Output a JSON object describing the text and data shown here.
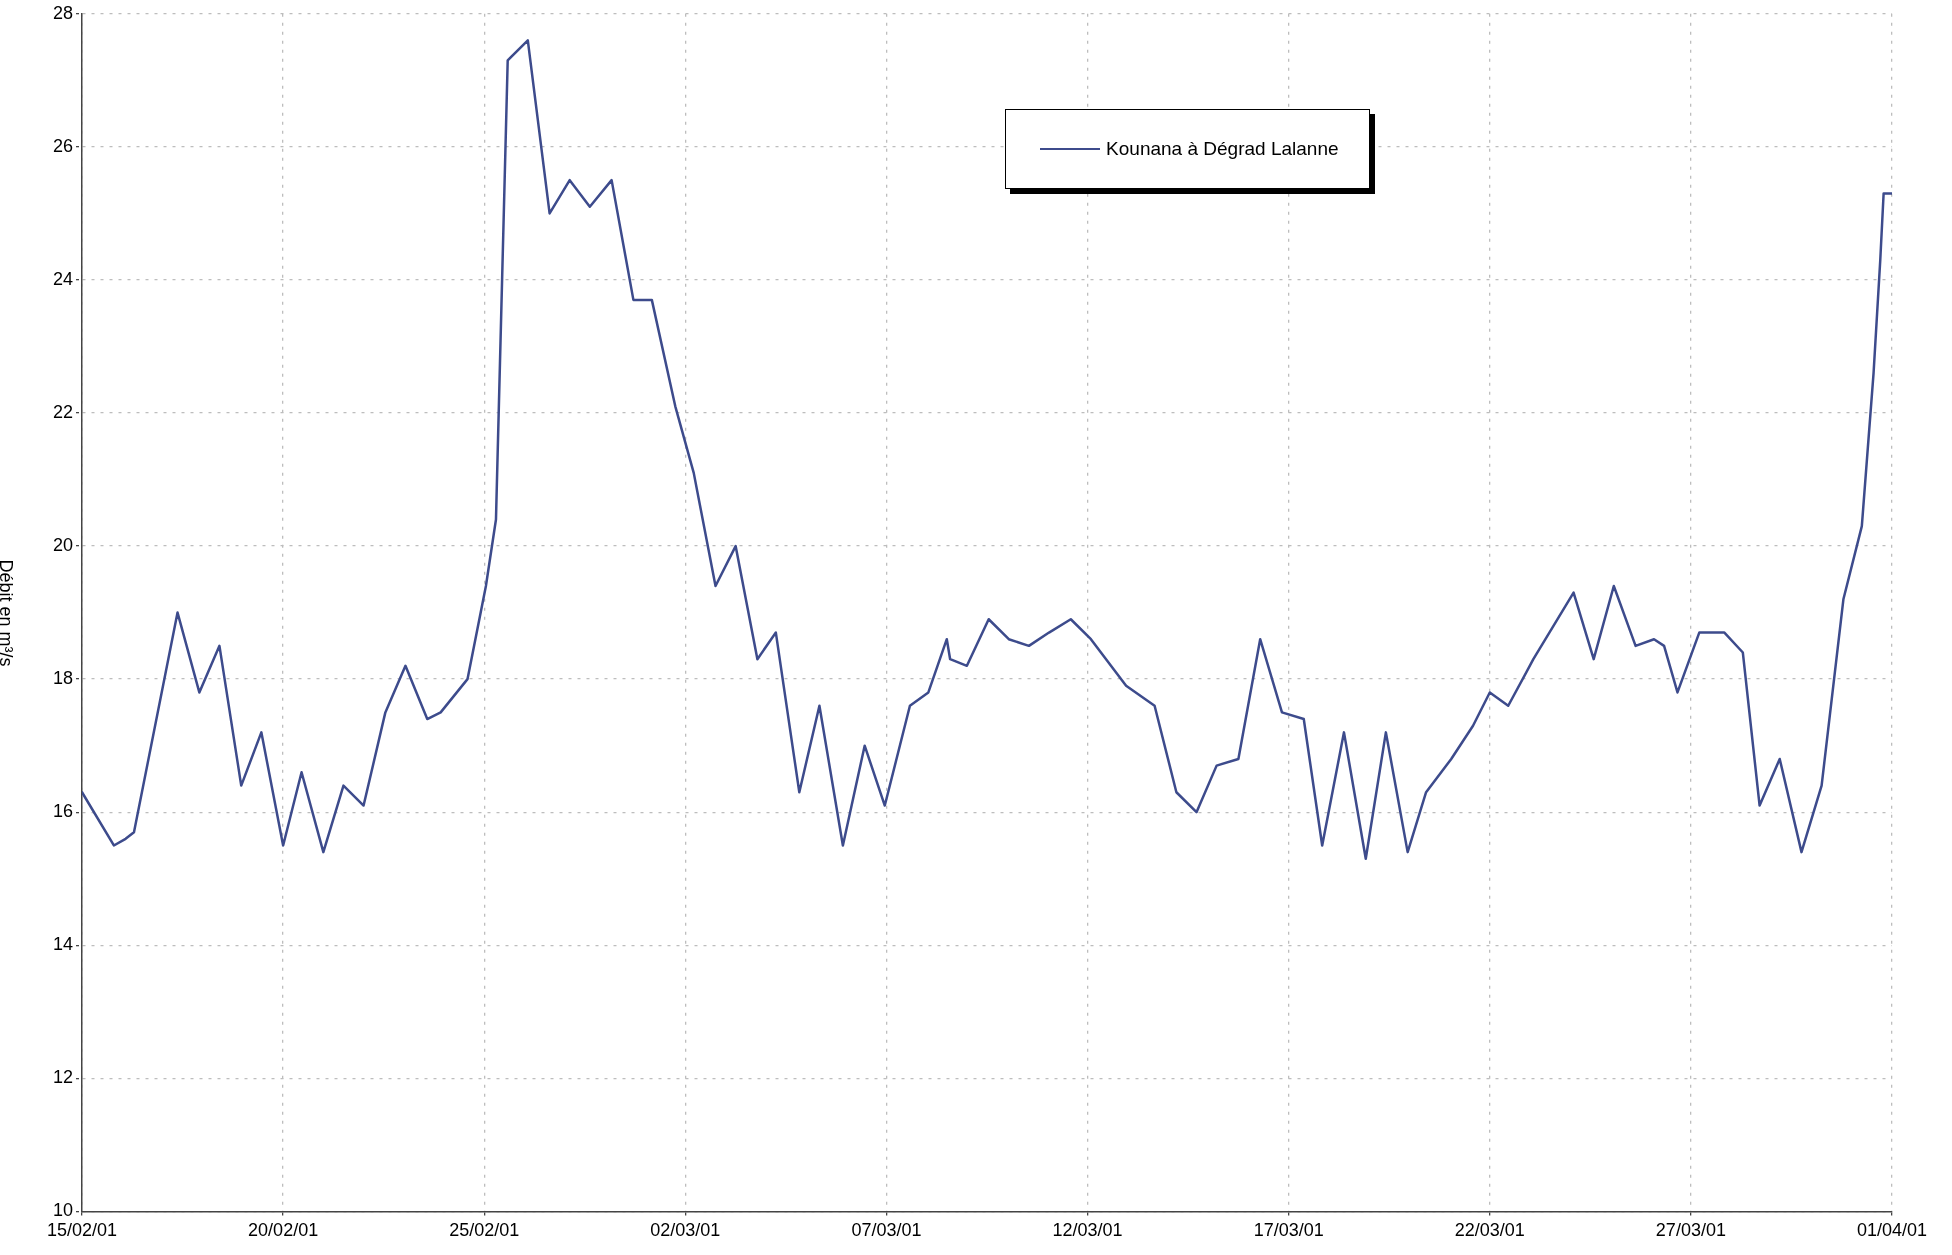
{
  "chart_data": {
    "type": "line",
    "ylabel": "Débit en m³/s",
    "xlim": [
      "--02-15",
      "--04-01"
    ],
    "xticks": [
      {
        "value": "2001-02-15",
        "label": "15/02/01"
      },
      {
        "value": "2001-02-20",
        "label": "20/02/01"
      },
      {
        "value": "2001-02-25",
        "label": "25/02/01"
      },
      {
        "value": "2001-03-02",
        "label": "02/03/01"
      },
      {
        "value": "2001-03-07",
        "label": "07/03/01"
      },
      {
        "value": "2001-03-12",
        "label": "12/03/01"
      },
      {
        "value": "2001-03-17",
        "label": "17/03/01"
      },
      {
        "value": "2001-03-22",
        "label": "22/03/01"
      },
      {
        "value": "2001-03-27",
        "label": "27/03/01"
      },
      {
        "value": "2001-04-01",
        "label": "01/04/01"
      }
    ],
    "ylim": [
      10,
      28
    ],
    "yticks": [
      10,
      12,
      14,
      16,
      18,
      20,
      22,
      24,
      26,
      28
    ],
    "grid": true,
    "legend": "top right",
    "marker": "none",
    "line_style": "solid",
    "series": [
      {
        "name": "Kounana à Dégrad Lalanne",
        "color": "#3d4b8c",
        "x": [
          "2001-02-15T00:00",
          "2001-02-15T19:00",
          "2001-02-16T02:00",
          "2001-02-16T07:00",
          "2001-02-17T09:00",
          "2001-02-17T22:00",
          "2001-02-18T10:00",
          "2001-02-18T23:00",
          "2001-02-19T11:00",
          "2001-02-20T00:00",
          "2001-02-20T11:00",
          "2001-02-21T00:00",
          "2001-02-21T12:00",
          "2001-02-22T00:00",
          "2001-02-22T13:00",
          "2001-02-23T01:00",
          "2001-02-23T14:00",
          "2001-02-23T22:00",
          "2001-02-24T14:00",
          "2001-02-25T01:00",
          "2001-02-25T07:00",
          "2001-02-25T14:00",
          "2001-02-26T02:00",
          "2001-02-26T15:00",
          "2001-02-27T03:00",
          "2001-02-27T15:00",
          "2001-02-28T04:00",
          "2001-02-28T17:00",
          "2001-03-01T04:00",
          "2001-03-01T18:00",
          "2001-03-02T05:00",
          "2001-03-02T18:00",
          "2001-03-03T06:00",
          "2001-03-03T19:00",
          "2001-03-04T06:00",
          "2001-03-04T20:00",
          "2001-03-05T08:00",
          "2001-03-05T22:00",
          "2001-03-06T11:00",
          "2001-03-06T23:00",
          "2001-03-07T14:00",
          "2001-03-08T01:00",
          "2001-03-08T12:00",
          "2001-03-08T14:00",
          "2001-03-09T00:00",
          "2001-03-09T13:00",
          "2001-03-10T01:00",
          "2001-03-10T13:00",
          "2001-03-11T01:00",
          "2001-03-11T14:00",
          "2001-03-12T02:00",
          "2001-03-12T23:00",
          "2001-03-13T16:00",
          "2001-03-14T05:00",
          "2001-03-14T17:00",
          "2001-03-15T05:00",
          "2001-03-15T18:00",
          "2001-03-16T07:00",
          "2001-03-16T20:00",
          "2001-03-17T09:00",
          "2001-03-17T20:00",
          "2001-03-18T09:00",
          "2001-03-18T22:00",
          "2001-03-19T10:00",
          "2001-03-19T23:00",
          "2001-03-20T10:00",
          "2001-03-21T01:00",
          "2001-03-21T14:00",
          "2001-03-22T00:00",
          "2001-03-22T11:00",
          "2001-03-23T02:00",
          "2001-03-24T02:00",
          "2001-03-24T14:00",
          "2001-03-25T02:00",
          "2001-03-25T15:00",
          "2001-03-26T02:00",
          "2001-03-26T08:00",
          "2001-03-26T16:00",
          "2001-03-27T05:00",
          "2001-03-27T20:00",
          "2001-03-28T07:00",
          "2001-03-28T17:00",
          "2001-03-29T05:00",
          "2001-03-29T18:00",
          "2001-03-30T06:00",
          "2001-03-30T19:00",
          "2001-03-31T06:00",
          "2001-03-31T13:00",
          "2001-03-31T17:00",
          "2001-03-31T19:00",
          "2001-04-01T00:00"
        ],
        "values": [
          16.3,
          15.5,
          15.6,
          15.7,
          19.0,
          17.8,
          18.5,
          16.4,
          17.2,
          15.5,
          16.6,
          15.4,
          16.4,
          16.1,
          17.5,
          18.2,
          17.4,
          17.5,
          18.0,
          19.4,
          20.4,
          27.3,
          27.6,
          25.0,
          25.5,
          25.1,
          25.5,
          23.7,
          23.7,
          22.1,
          21.1,
          19.4,
          20.0,
          18.3,
          18.7,
          16.3,
          17.6,
          15.5,
          17.0,
          16.1,
          17.6,
          17.8,
          18.6,
          18.3,
          18.2,
          18.9,
          18.6,
          18.5,
          18.7,
          18.9,
          18.6,
          17.9,
          17.6,
          16.3,
          16.0,
          16.7,
          16.8,
          18.6,
          17.5,
          17.4,
          15.5,
          17.2,
          15.3,
          17.2,
          15.4,
          16.3,
          16.8,
          17.3,
          17.8,
          17.6,
          18.3,
          19.3,
          18.3,
          19.4,
          18.5,
          18.6,
          18.5,
          17.8,
          18.7,
          18.7,
          18.4,
          16.1,
          16.8,
          15.4,
          16.4,
          19.2,
          20.3,
          22.6,
          24.3,
          25.3,
          25.3
        ]
      }
    ]
  }
}
